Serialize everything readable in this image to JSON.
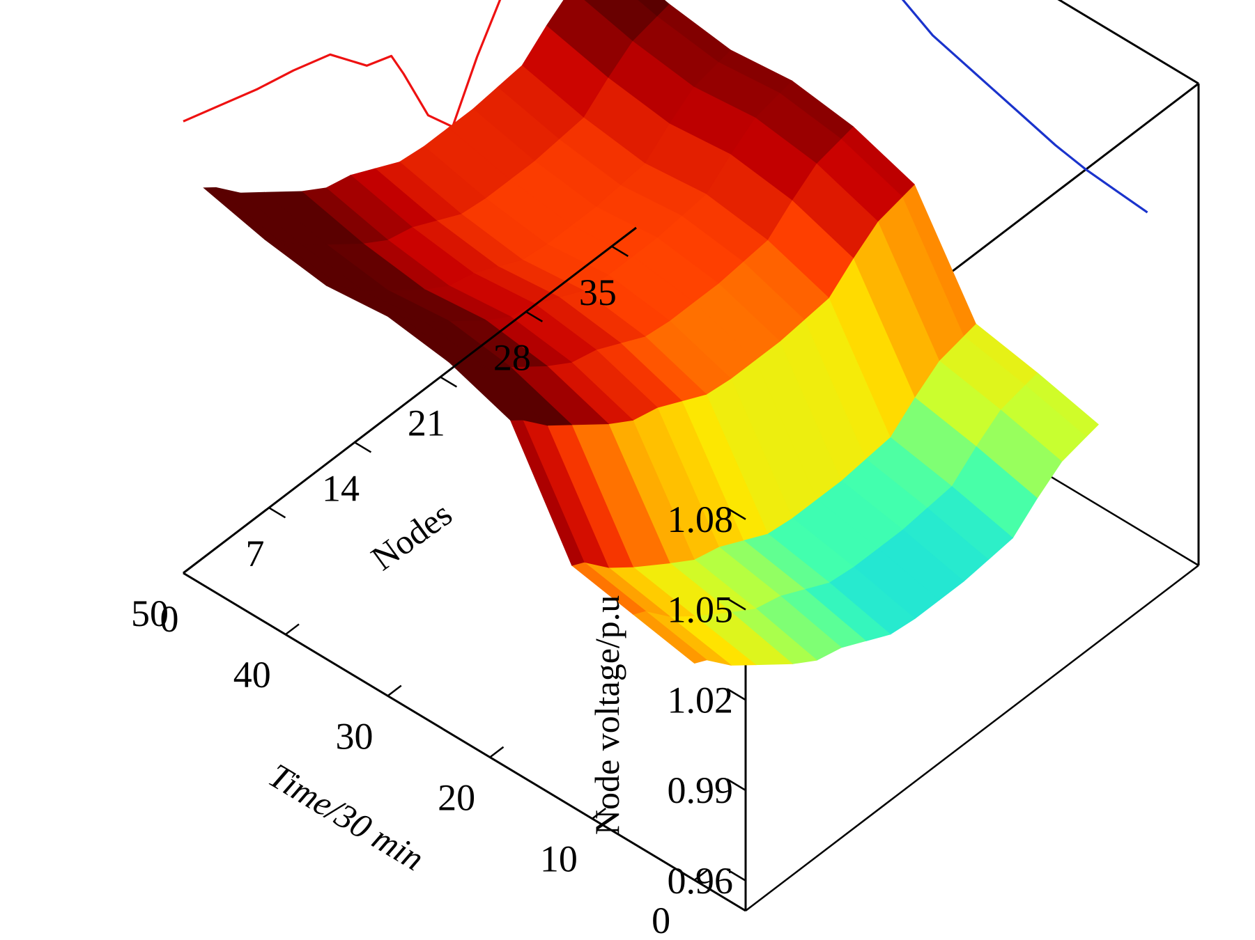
{
  "chart_data": {
    "type": "surface3d",
    "title": "",
    "xlabel": "Time/30 min",
    "ylabel": "Nodes",
    "zlabel": "Node voltage/p.u",
    "xlim": [
      -5,
      50
    ],
    "ylim": [
      0,
      37
    ],
    "zlim": [
      0.95,
      1.11
    ],
    "x_ticks": [
      "0",
      "10",
      "20",
      "30",
      "40",
      "50"
    ],
    "x_tick_values": [
      0,
      10,
      20,
      30,
      40,
      50
    ],
    "y_ticks": [
      "0",
      "7",
      "14",
      "21",
      "28",
      "35"
    ],
    "y_tick_values": [
      0,
      7,
      14,
      21,
      28,
      35
    ],
    "z_ticks": [
      "0.96",
      "0.99",
      "1.02",
      "1.05",
      "1.08"
    ],
    "z_tick_values": [
      0.96,
      0.99,
      1.02,
      1.05,
      1.08
    ],
    "colormap": [
      "#00008b",
      "#0050ff",
      "#00c8ff",
      "#40ffb0",
      "#c8ff30",
      "#ffe600",
      "#ffa500",
      "#ff4000",
      "#c80000",
      "#5a0000"
    ],
    "color_range": [
      0.955,
      1.055
    ],
    "x_grid": [
      0,
      6,
      12,
      18,
      24,
      30,
      36,
      42,
      48
    ],
    "y_grid": [
      0,
      1,
      3,
      5,
      8,
      10,
      12,
      14,
      16,
      18,
      20,
      22,
      24,
      26,
      28,
      30,
      32,
      33
    ],
    "z_values": [
      [
        1.022,
        1.02,
        1.012,
        1.006,
        0.997,
        0.992,
        0.99,
        0.986,
        0.982,
        0.981,
        0.981,
        0.981,
        0.982,
        0.983,
        0.99,
        0.996,
        0.998,
        0.999
      ],
      [
        1.026,
        1.024,
        1.016,
        1.01,
        1.002,
        0.997,
        0.995,
        0.991,
        0.987,
        0.986,
        0.986,
        0.986,
        0.987,
        0.988,
        0.995,
        1.001,
        1.003,
        1.004
      ],
      [
        1.03,
        1.028,
        1.02,
        1.014,
        1.006,
        1.001,
        0.999,
        0.995,
        0.991,
        0.99,
        0.99,
        0.99,
        0.991,
        0.992,
        0.999,
        1.005,
        1.007,
        1.008
      ],
      [
        1.066,
        1.063,
        1.055,
        1.049,
        1.04,
        1.035,
        1.033,
        1.029,
        1.025,
        1.024,
        1.024,
        1.024,
        1.025,
        1.026,
        1.033,
        1.039,
        1.041,
        1.042
      ],
      [
        1.073,
        1.07,
        1.062,
        1.056,
        1.047,
        1.042,
        1.04,
        1.036,
        1.032,
        1.031,
        1.031,
        1.031,
        1.032,
        1.033,
        1.04,
        1.046,
        1.048,
        1.049
      ],
      [
        1.076,
        1.073,
        1.065,
        1.059,
        1.05,
        1.045,
        1.043,
        1.039,
        1.035,
        1.034,
        1.034,
        1.034,
        1.035,
        1.036,
        1.043,
        1.049,
        1.051,
        1.052
      ],
      [
        1.074,
        1.071,
        1.063,
        1.057,
        1.048,
        1.043,
        1.041,
        1.037,
        1.033,
        1.032,
        1.032,
        1.032,
        1.033,
        1.034,
        1.041,
        1.047,
        1.049,
        1.05
      ],
      [
        1.077,
        1.074,
        1.066,
        1.06,
        1.051,
        1.046,
        1.044,
        1.04,
        1.036,
        1.035,
        1.035,
        1.035,
        1.036,
        1.037,
        1.044,
        1.05,
        1.052,
        1.053
      ],
      [
        1.082,
        1.079,
        1.071,
        1.065,
        1.056,
        1.051,
        1.049,
        1.045,
        1.041,
        1.04,
        1.04,
        1.04,
        1.041,
        1.042,
        1.049,
        1.055,
        1.057,
        1.058
      ]
    ],
    "back_projections": [
      {
        "plane": "time-voltage (nodes = 37)",
        "color": "#1a33cc",
        "x": [
          0,
          3,
          6,
          9,
          12,
          15,
          18,
          21,
          24,
          27,
          30,
          33,
          36,
          39,
          42,
          45,
          48
        ],
        "z": [
          1.057,
          1.058,
          1.059,
          1.061,
          1.064,
          1.067,
          1.07,
          1.073,
          1.079,
          1.083,
          1.087,
          1.091,
          1.096,
          1.098,
          1.1,
          1.103,
          1.106
        ]
      },
      {
        "plane": "nodes-voltage (time = 50)",
        "color": "#ee1111",
        "y": [
          0,
          3,
          6,
          9,
          12,
          15,
          17,
          18,
          20,
          22,
          24,
          27,
          30,
          33
        ],
        "z": [
          1.1,
          1.096,
          1.092,
          1.089,
          1.085,
          1.072,
          1.069,
          1.06,
          1.04,
          1.03,
          1.047,
          1.068,
          1.066,
          1.064
        ]
      }
    ]
  }
}
